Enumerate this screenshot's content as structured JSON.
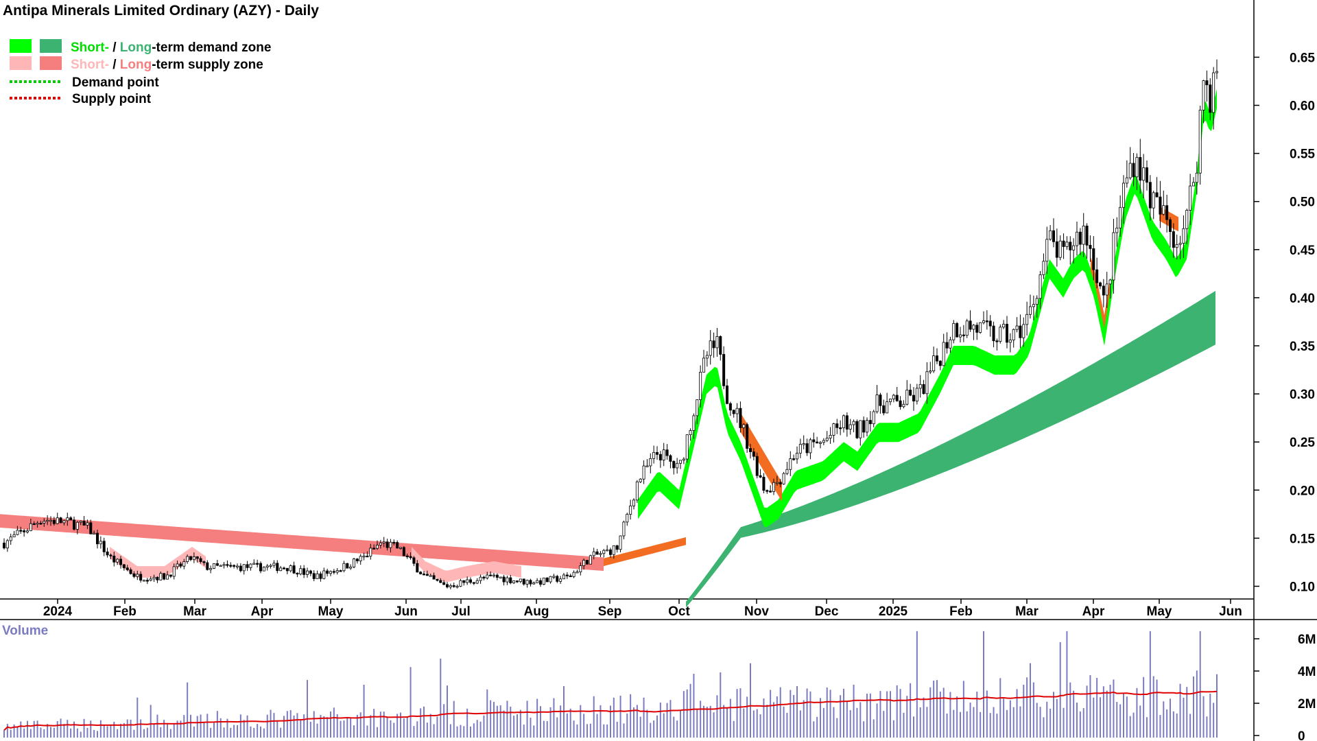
{
  "chart_data": [
    {
      "type": "candlestick",
      "title": "Antipa Minerals Limited Ordinary (AZY) - Daily",
      "legend": {
        "demand_zone": {
          "short": "Short-",
          "sep": " / ",
          "long": "Long",
          "rest": "-term demand zone"
        },
        "supply_zone": {
          "short": "Short-",
          "sep": " / ",
          "long": "Long",
          "rest": "-term supply zone"
        },
        "demand_point": "Demand point",
        "supply_point": "Supply point"
      },
      "colors": {
        "short_demand": "#00ff00",
        "long_demand": "#3cb371",
        "short_supply": "#ffb6b6",
        "long_supply": "#f57f7f",
        "orange_zone": "#f26d21",
        "demand_point": "#00cc00",
        "supply_point": "#e00000",
        "volume_bar": "#7b7bc2",
        "volume_avg": "#e00000",
        "legend_short_demand_text": "#00dd00",
        "legend_long_demand_text": "#3cb371",
        "legend_short_supply_text": "#ffb6b6",
        "legend_long_supply_text": "#f57f7f"
      },
      "x_ticks": [
        "2024",
        "Feb",
        "Mar",
        "Apr",
        "May",
        "Jun",
        "Jul",
        "Aug",
        "Sep",
        "Oct",
        "Nov",
        "Dec",
        "2025",
        "Feb",
        "Mar",
        "Apr",
        "May",
        "Jun"
      ],
      "y_ticks": [
        "0.65",
        "0.60",
        "0.55",
        "0.50",
        "0.45",
        "0.40",
        "0.35",
        "0.30",
        "0.25",
        "0.20",
        "0.15",
        "0.10"
      ],
      "ylim": [
        0.065,
        0.74
      ],
      "price_path": {
        "months": [
          "Dec 2023",
          "Jan 2024",
          "Feb 2024",
          "Mar 2024",
          "Apr 2024",
          "May 2024",
          "Jun 2024",
          "Jul 2024",
          "Aug 2024",
          "Sep 2024",
          "Oct 2024",
          "Nov 2024",
          "Dec 2024",
          "Jan 2025",
          "Feb 2025",
          "Mar 2025",
          "Apr 2025",
          "May 2025"
        ],
        "approx_close": [
          0.145,
          0.16,
          0.12,
          0.13,
          0.12,
          0.12,
          0.14,
          0.1,
          0.11,
          0.2,
          0.33,
          0.2,
          0.26,
          0.28,
          0.37,
          0.45,
          0.43,
          0.64
        ],
        "high": 0.665,
        "low": 0.09
      }
    },
    {
      "type": "bar",
      "title": "Volume",
      "y_ticks": [
        "6M",
        "4M",
        "2M",
        "0"
      ],
      "ylim": [
        0,
        7000000
      ],
      "average_line": "moving average (red)",
      "approx_avg_start": 800000,
      "approx_avg_end": 2600000
    }
  ]
}
